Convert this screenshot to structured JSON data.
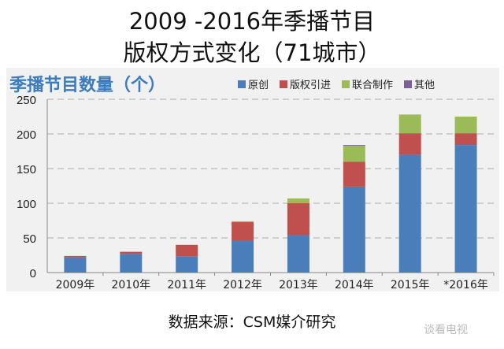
{
  "title_line1": "2009 -2016年季播节目",
  "title_line2": "版权方式变化（71城市）",
  "footer": "数据来源：CSM媒介研究",
  "watermark": "谈看电视",
  "chart_data": {
    "type": "bar",
    "stacked": true,
    "title": "季播节目数量（个）",
    "categories": [
      "2009年",
      "2010年",
      "2011年",
      "2012年",
      "2013年",
      "2014年",
      "2015年",
      "*2016年"
    ],
    "series": [
      {
        "name": "原创",
        "color": "#4a7ebb",
        "values": [
          22,
          27,
          23,
          46,
          54,
          124,
          170,
          184
        ]
      },
      {
        "name": "版权引进",
        "color": "#c0504d",
        "values": [
          2,
          3,
          17,
          27,
          46,
          36,
          31,
          17
        ]
      },
      {
        "name": "联合制作",
        "color": "#9bbb59",
        "values": [
          0,
          0,
          0,
          1,
          7,
          23,
          27,
          24
        ]
      },
      {
        "name": "其他",
        "color": "#7a5f9a",
        "values": [
          0,
          0,
          0,
          0,
          0,
          1,
          0,
          0
        ]
      }
    ],
    "ylim": [
      0,
      250
    ],
    "yticks": [
      0,
      50,
      100,
      150,
      200,
      250
    ],
    "grid": true,
    "legend": "top-right"
  }
}
